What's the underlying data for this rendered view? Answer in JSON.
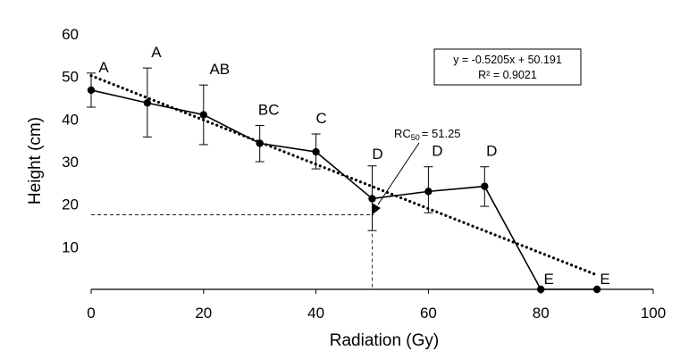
{
  "chart_data": {
    "type": "line",
    "xlabel": "Radiation (Gy)",
    "ylabel": "Height (cm)",
    "xlim": [
      0,
      100
    ],
    "ylim": [
      0,
      60
    ],
    "xticks": [
      0,
      20,
      40,
      60,
      80,
      100
    ],
    "yticks": [
      10,
      20,
      30,
      40,
      50,
      60
    ],
    "grid": false,
    "series": [
      {
        "x": [
          0,
          10,
          20,
          30,
          40,
          50,
          60,
          70,
          80,
          90
        ],
        "y": [
          46.8,
          43.8,
          41.0,
          34.3,
          32.3,
          21.3,
          23.0,
          24.2,
          0,
          0
        ],
        "err_low": [
          42.8,
          35.8,
          34.0,
          30.0,
          28.3,
          13.8,
          18.0,
          19.5,
          0,
          0
        ],
        "err_high": [
          50.8,
          52.0,
          48.0,
          38.5,
          36.5,
          29.0,
          28.8,
          28.8,
          0,
          0
        ],
        "labels": [
          "A",
          "A",
          "AB",
          "BC",
          "C",
          "D",
          "D",
          "D",
          "E",
          "E"
        ],
        "color": "#000000"
      }
    ],
    "trendline": {
      "slope": -0.5205,
      "intercept": 50.191,
      "x_range": [
        0,
        90
      ],
      "style": "dotted",
      "equation": "y = -0.5205x + 50.191",
      "r2": "R² = 0.9021"
    },
    "annotation": {
      "rc_prefix": "RC",
      "rc_sub": "50",
      "rc_value": "= 51.25",
      "x": 51.25,
      "y": 17.5
    }
  }
}
